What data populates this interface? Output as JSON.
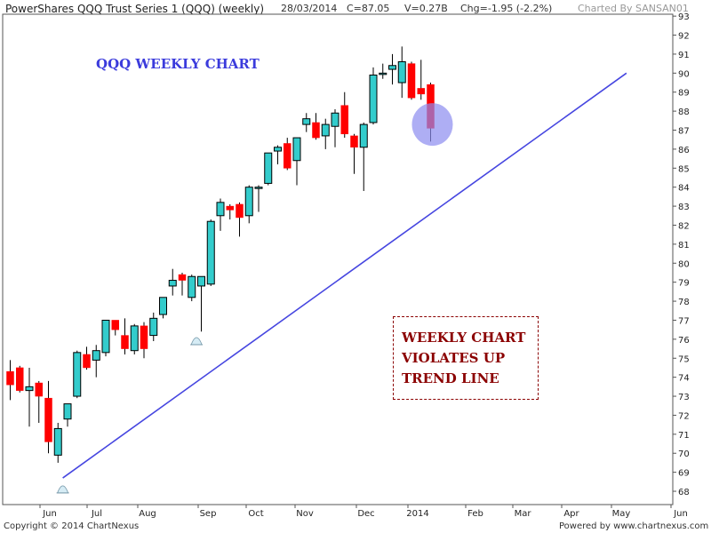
{
  "header": {
    "title": "PowerShares QQQ Trust Series 1 (QQQ) (weekly)",
    "date": "28/03/2014",
    "close": "C=87.05",
    "volume": "V=0.27B",
    "change": "Chg=-1.95 (-2.2%)",
    "charted_by": "Charted By SANSAN01"
  },
  "annotations": {
    "title": "QQQ WEEKLY CHART",
    "callout_lines": [
      "WEEKLY CHART",
      "VIOLATES UP",
      "TREND LINE"
    ]
  },
  "footer": {
    "copyright": "Copyright © 2014 ChartNexus",
    "powered_by": "Powered by www.chartnexus.com"
  },
  "colors": {
    "up": "#33cccc",
    "down": "#ff0000",
    "trendline": "#4646e0",
    "highlight": "#8c8cf0"
  },
  "chart_data": {
    "type": "candlestick",
    "y_range": [
      67.3,
      93.1
    ],
    "y_ticks": [
      68,
      69,
      70,
      71,
      72,
      73,
      74,
      75,
      76,
      77,
      78,
      79,
      80,
      81,
      82,
      83,
      84,
      85,
      86,
      87,
      88,
      89,
      90,
      91,
      92,
      93
    ],
    "x_labels": [
      "Jun",
      "Jul",
      "Aug",
      "Sep",
      "Oct",
      "Nov",
      "Dec",
      "2014",
      "Feb",
      "Mar",
      "Apr",
      "May",
      "Jun"
    ],
    "candles": [
      {
        "o": 74.3,
        "h": 74.9,
        "l": 72.8,
        "c": 73.6
      },
      {
        "o": 74.5,
        "h": 74.6,
        "l": 73.2,
        "c": 73.3
      },
      {
        "o": 73.3,
        "h": 74.5,
        "l": 71.4,
        "c": 73.5
      },
      {
        "o": 73.7,
        "h": 73.8,
        "l": 71.6,
        "c": 73.0
      },
      {
        "o": 72.9,
        "h": 73.8,
        "l": 70.0,
        "c": 70.6
      },
      {
        "o": 69.9,
        "h": 71.6,
        "l": 69.5,
        "c": 71.3
      },
      {
        "o": 71.8,
        "h": 72.6,
        "l": 71.4,
        "c": 72.6
      },
      {
        "o": 73.0,
        "h": 75.4,
        "l": 72.9,
        "c": 75.3
      },
      {
        "o": 75.2,
        "h": 75.6,
        "l": 74.4,
        "c": 74.5
      },
      {
        "o": 74.9,
        "h": 75.7,
        "l": 74.0,
        "c": 75.4
      },
      {
        "o": 75.3,
        "h": 77.0,
        "l": 75.1,
        "c": 77.0
      },
      {
        "o": 77.0,
        "h": 77.0,
        "l": 76.2,
        "c": 76.5
      },
      {
        "o": 76.2,
        "h": 77.1,
        "l": 75.2,
        "c": 75.5
      },
      {
        "o": 75.4,
        "h": 76.8,
        "l": 75.2,
        "c": 76.7
      },
      {
        "o": 76.7,
        "h": 76.9,
        "l": 75.0,
        "c": 75.5
      },
      {
        "o": 76.2,
        "h": 77.4,
        "l": 75.9,
        "c": 77.1
      },
      {
        "o": 77.3,
        "h": 78.2,
        "l": 77.1,
        "c": 78.2
      },
      {
        "o": 78.8,
        "h": 79.7,
        "l": 78.3,
        "c": 79.1
      },
      {
        "o": 79.4,
        "h": 79.5,
        "l": 78.3,
        "c": 79.1
      },
      {
        "o": 78.2,
        "h": 79.4,
        "l": 78.0,
        "c": 79.3
      },
      {
        "o": 78.8,
        "h": 79.3,
        "l": 76.4,
        "c": 79.3
      },
      {
        "o": 78.9,
        "h": 82.3,
        "l": 78.8,
        "c": 82.2
      },
      {
        "o": 82.5,
        "h": 83.4,
        "l": 81.7,
        "c": 83.2
      },
      {
        "o": 83.0,
        "h": 83.1,
        "l": 82.3,
        "c": 82.8
      },
      {
        "o": 83.1,
        "h": 83.2,
        "l": 81.4,
        "c": 82.4
      },
      {
        "o": 82.5,
        "h": 84.1,
        "l": 82.1,
        "c": 84.0
      },
      {
        "o": 84.0,
        "h": 84.1,
        "l": 82.7,
        "c": 84.0
      },
      {
        "o": 84.2,
        "h": 85.8,
        "l": 84.1,
        "c": 85.8
      },
      {
        "o": 85.9,
        "h": 86.2,
        "l": 85.2,
        "c": 86.1
      },
      {
        "o": 86.3,
        "h": 86.6,
        "l": 84.9,
        "c": 85.0
      },
      {
        "o": 85.4,
        "h": 86.6,
        "l": 84.1,
        "c": 86.6
      },
      {
        "o": 87.3,
        "h": 87.9,
        "l": 86.9,
        "c": 87.6
      },
      {
        "o": 87.4,
        "h": 87.9,
        "l": 86.5,
        "c": 86.6
      },
      {
        "o": 86.7,
        "h": 87.6,
        "l": 86.0,
        "c": 87.3
      },
      {
        "o": 87.2,
        "h": 88.1,
        "l": 86.1,
        "c": 87.9
      },
      {
        "o": 88.3,
        "h": 89.0,
        "l": 86.6,
        "c": 86.8
      },
      {
        "o": 86.7,
        "h": 86.8,
        "l": 84.7,
        "c": 86.1
      },
      {
        "o": 86.1,
        "h": 87.4,
        "l": 83.8,
        "c": 87.3
      },
      {
        "o": 87.4,
        "h": 90.3,
        "l": 87.3,
        "c": 89.9
      },
      {
        "o": 90.0,
        "h": 90.5,
        "l": 89.7,
        "c": 90.0
      },
      {
        "o": 90.2,
        "h": 91.0,
        "l": 89.4,
        "c": 90.4
      },
      {
        "o": 89.5,
        "h": 91.4,
        "l": 88.7,
        "c": 90.6
      },
      {
        "o": 90.5,
        "h": 90.6,
        "l": 88.6,
        "c": 88.7
      },
      {
        "o": 89.2,
        "h": 90.7,
        "l": 88.6,
        "c": 88.9
      },
      {
        "o": 89.4,
        "h": 89.5,
        "l": 86.4,
        "c": 87.1
      }
    ],
    "trendline": {
      "from_index": 5.5,
      "from_value": 68.7,
      "to_index": 64.5,
      "to_value": 90.0
    },
    "highlight": {
      "index": 44,
      "value": 87.3
    },
    "markers": [
      {
        "index": 5.5,
        "value": 68.1
      },
      {
        "index": 19.5,
        "value": 75.9
      }
    ]
  }
}
